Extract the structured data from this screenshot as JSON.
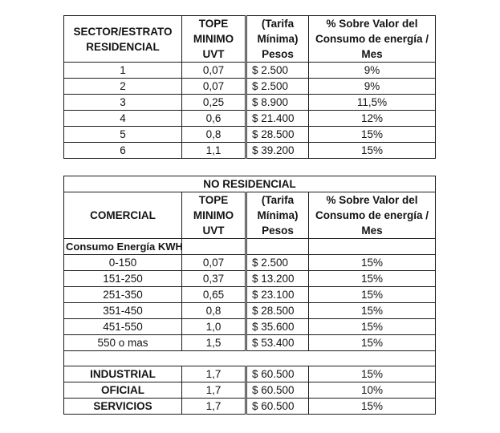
{
  "page": {
    "background": "#ffffff",
    "text_color": "#141414",
    "border_color": "#1c1c1c"
  },
  "residential_table": {
    "header": {
      "sector": "SECTOR/ESTRATO\nRESIDENCIAL",
      "tope": "TOPE\nMINIMO\nUVT",
      "tarifa": "(Tarifa\nMínima)\nPesos",
      "porcentaje": "% Sobre Valor del\nConsumo de energía /\nMes"
    },
    "rows": [
      [
        "1",
        "0,07",
        "$ 2.500",
        "9%"
      ],
      [
        "2",
        "0,07",
        "$ 2.500",
        "9%"
      ],
      [
        "3",
        "0,25",
        "$ 8.900",
        "11,5%"
      ],
      [
        "4",
        "0,6",
        "$ 21.400",
        "12%"
      ],
      [
        "5",
        "0,8",
        "$ 28.500",
        "15%"
      ],
      [
        "6",
        "1,1",
        "$ 39.200",
        "15%"
      ]
    ]
  },
  "non_residential_table": {
    "title": "NO RESIDENCIAL",
    "header": {
      "sector": "COMERCIAL",
      "tope": "TOPE\nMINIMO\nUVT",
      "tarifa": "(Tarifa\nMínima)\nPesos",
      "porcentaje": "% Sobre Valor del\nConsumo de energía /\nMes"
    },
    "subheader": "Consumo Energía KWH",
    "consumption_rows": [
      [
        "0-150",
        "0,07",
        "$ 2.500",
        "15%"
      ],
      [
        "151-250",
        "0,37",
        "$ 13.200",
        "15%"
      ],
      [
        "251-350",
        "0,65",
        "$ 23.100",
        "15%"
      ],
      [
        "351-450",
        "0,8",
        "$ 28.500",
        "15%"
      ],
      [
        "451-550",
        "1,0",
        "$ 35.600",
        "15%"
      ],
      [
        "550 o mas",
        "1,5",
        "$ 53.400",
        "15%"
      ]
    ],
    "category_rows": [
      [
        "INDUSTRIAL",
        "1,7",
        "$ 60.500",
        "15%"
      ],
      [
        "OFICIAL",
        "1,7",
        "$ 60.500",
        "10%"
      ],
      [
        "SERVICIOS",
        "1,7",
        "$ 60.500",
        "15%"
      ]
    ]
  }
}
